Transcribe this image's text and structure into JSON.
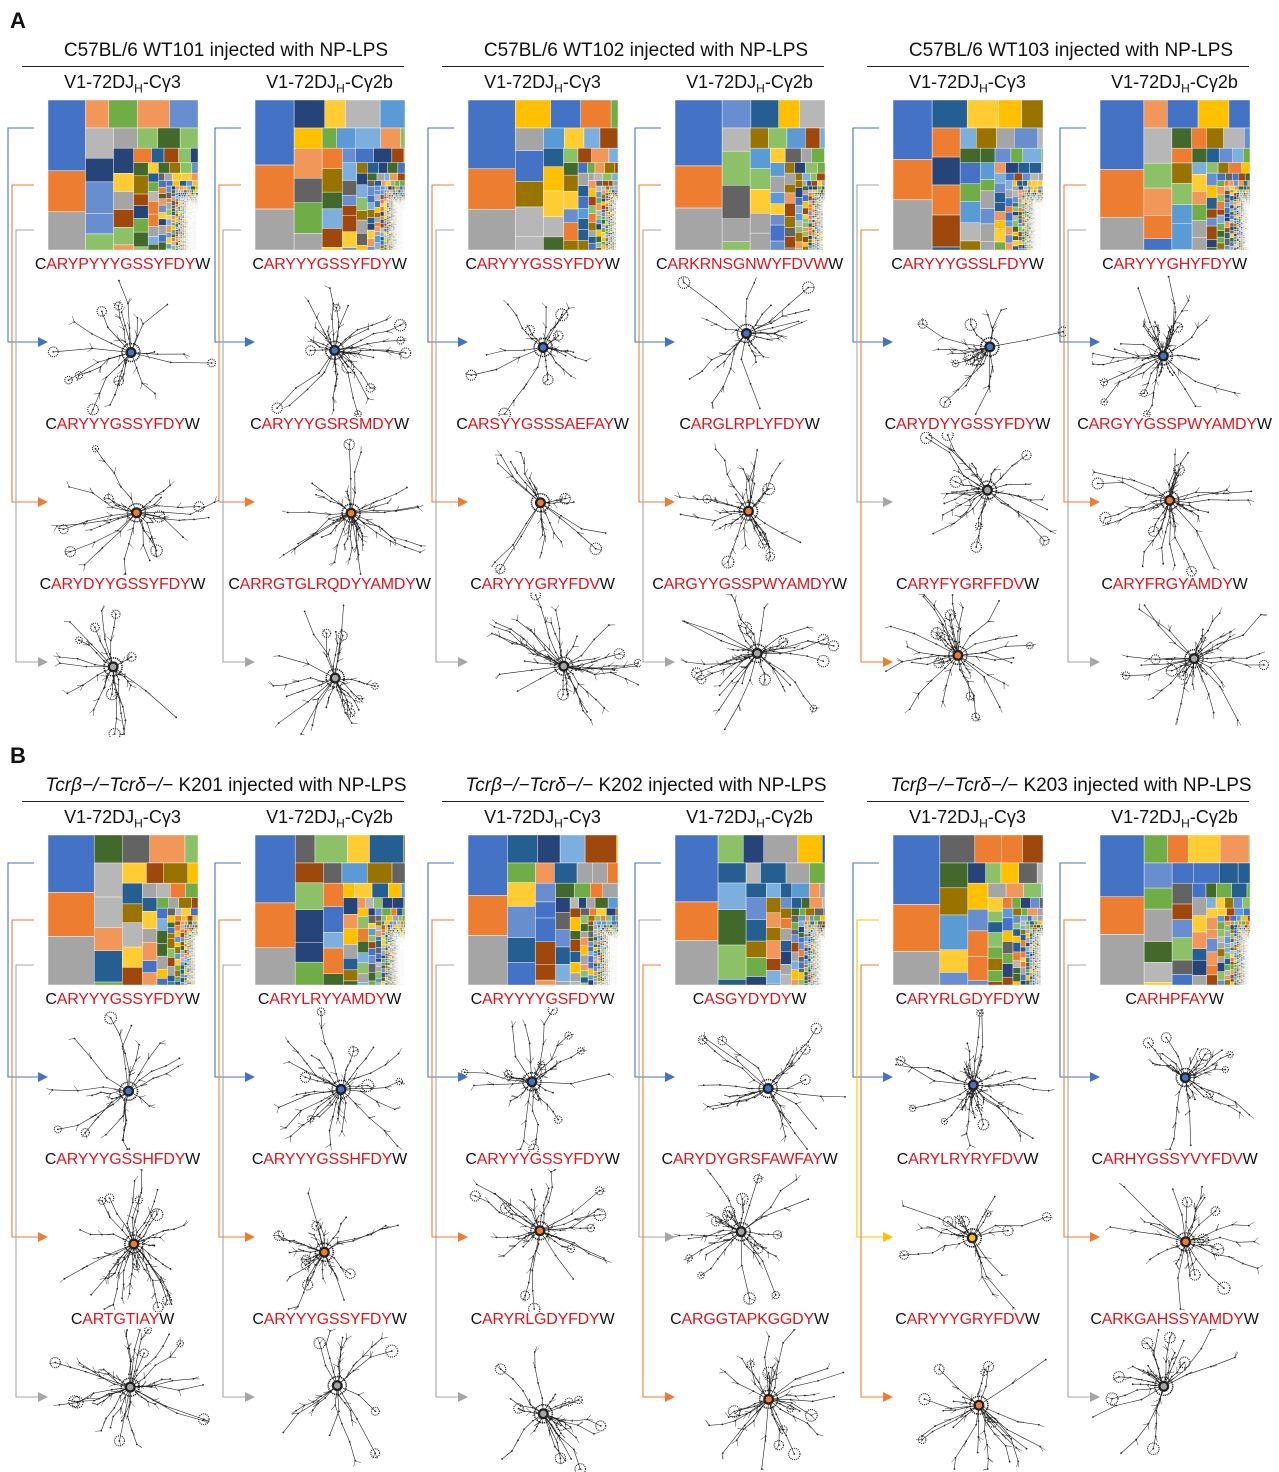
{
  "colors": {
    "blue": "#4472c4",
    "orange": "#ed7d31",
    "gray": "#a5a5a5",
    "yellow": "#ffc000",
    "seq_red": "#e0141b"
  },
  "palette": [
    "#4472c4",
    "#ed7d31",
    "#a5a5a5",
    "#ffc000",
    "#5b9bd5",
    "#70ad47",
    "#264478",
    "#9e480e",
    "#636363",
    "#997300",
    "#255e91",
    "#43682b",
    "#698ed0",
    "#f1975a",
    "#b7b7b7",
    "#ffcd33",
    "#8cc168",
    "#7cafdd"
  ],
  "panels": [
    {
      "letter": "A",
      "groups": [
        {
          "title_prefix": "C57BL/6",
          "title_suffix": "WT101 injected with NP-LPS",
          "columns": [
            {
              "heading": "V1-72DJH-Cγ3",
              "sequences": [
                {
                  "pre": "C",
                  "core": "ARYPYYYGSSYFDY",
                  "post": "W"
                },
                {
                  "pre": "C",
                  "core": "ARYYYGSSYFDY",
                  "post": "W"
                },
                {
                  "pre": "C",
                  "core": "ARYDYYGSSYFDY",
                  "post": "W"
                }
              ],
              "arrow_colors": [
                "blue",
                "orange",
                "gray"
              ]
            },
            {
              "heading": "V1-72DJH-Cγ2b",
              "sequences": [
                {
                  "pre": "C",
                  "core": "ARYYYGSSYFDY",
                  "post": "W"
                },
                {
                  "pre": "C",
                  "core": "ARYYYGSRSMDY",
                  "post": "W"
                },
                {
                  "pre": "C",
                  "core": "ARRGTGLRQDYYAMDY",
                  "post": "W"
                }
              ],
              "arrow_colors": [
                "blue",
                "orange",
                "gray"
              ]
            }
          ]
        },
        {
          "title_prefix": "C57BL/6",
          "title_suffix": "WT102 injected with NP-LPS",
          "columns": [
            {
              "heading": "V1-72DJH-Cγ3",
              "sequences": [
                {
                  "pre": "C",
                  "core": "ARYYYGSSYFDY",
                  "post": "W"
                },
                {
                  "pre": "C",
                  "core": "ARSYYGSSSAEFAY",
                  "post": "W"
                },
                {
                  "pre": "C",
                  "core": "ARYYYGRYFDV",
                  "post": "W"
                }
              ],
              "arrow_colors": [
                "blue",
                "orange",
                "gray"
              ]
            },
            {
              "heading": "V1-72DJH-Cγ2b",
              "sequences": [
                {
                  "pre": "C",
                  "core": "ARKRNSGNWYFDVW",
                  "post": "W"
                },
                {
                  "pre": "C",
                  "core": "ARGLRPLYFDY",
                  "post": "W"
                },
                {
                  "pre": "C",
                  "core": "ARGYYGSSPWYAMDY",
                  "post": "W"
                }
              ],
              "arrow_colors": [
                "blue",
                "orange",
                "gray"
              ]
            }
          ]
        },
        {
          "title_prefix": "C57BL/6",
          "title_suffix": "WT103 injected with NP-LPS",
          "columns": [
            {
              "heading": "V1-72DJH-Cγ3",
              "sequences": [
                {
                  "pre": "C",
                  "core": "ARYYYGSSLFDY",
                  "post": "W"
                },
                {
                  "pre": "C",
                  "core": "ARYDYYGSSYFDY",
                  "post": "W"
                },
                {
                  "pre": "C",
                  "core": "ARYFYGRFFDV",
                  "post": "W"
                }
              ],
              "arrow_colors": [
                "blue",
                "gray",
                "orange"
              ]
            },
            {
              "heading": "V1-72DJH-Cγ2b",
              "sequences": [
                {
                  "pre": "C",
                  "core": "ARYYYGHYFDY",
                  "post": "W"
                },
                {
                  "pre": "C",
                  "core": "ARGYYGSSPWYAMDY",
                  "post": "W"
                },
                {
                  "pre": "C",
                  "core": "ARYFRGYAMDY",
                  "post": "W"
                }
              ],
              "arrow_colors": [
                "blue",
                "orange",
                "gray"
              ]
            }
          ]
        }
      ]
    },
    {
      "letter": "B",
      "groups": [
        {
          "title_prefix": "Tcrβ−/−Tcrδ−/−",
          "title_suffix": "K201 injected with NP-LPS",
          "columns": [
            {
              "heading": "V1-72DJH-Cγ3",
              "sequences": [
                {
                  "pre": "C",
                  "core": "ARYYYGSSYFDY",
                  "post": "W"
                },
                {
                  "pre": "C",
                  "core": "ARYYYGSSHFDY",
                  "post": "W"
                },
                {
                  "pre": "C",
                  "core": "ARTGTIAY",
                  "post": "W"
                }
              ],
              "arrow_colors": [
                "blue",
                "orange",
                "gray"
              ]
            },
            {
              "heading": "V1-72DJH-Cγ2b",
              "sequences": [
                {
                  "pre": "C",
                  "core": "ARYLRYYAMDY",
                  "post": "W"
                },
                {
                  "pre": "C",
                  "core": "ARYYYGSSHFDY",
                  "post": "W"
                },
                {
                  "pre": "C",
                  "core": "ARYYYGSSYFDY",
                  "post": "W"
                }
              ],
              "arrow_colors": [
                "blue",
                "orange",
                "gray"
              ]
            }
          ]
        },
        {
          "title_prefix": "Tcrβ−/−Tcrδ−/−",
          "title_suffix": "K202 injected with NP-LPS",
          "columns": [
            {
              "heading": "V1-72DJH-Cγ3",
              "sequences": [
                {
                  "pre": "C",
                  "core": "ARYYYYGSFDY",
                  "post": "W"
                },
                {
                  "pre": "C",
                  "core": "ARYYYGSSYFDY",
                  "post": "W"
                },
                {
                  "pre": "C",
                  "core": "ARYRLGDYFDY",
                  "post": "W"
                }
              ],
              "arrow_colors": [
                "blue",
                "orange",
                "gray"
              ]
            },
            {
              "heading": "V1-72DJH-Cγ2b",
              "sequences": [
                {
                  "pre": "C",
                  "core": "ASGYDYDY",
                  "post": "W"
                },
                {
                  "pre": "C",
                  "core": "ARYDYGRSFAWFAY",
                  "post": "W"
                },
                {
                  "pre": "C",
                  "core": "ARGGTAPKGGDY",
                  "post": "W"
                }
              ],
              "arrow_colors": [
                "blue",
                "gray",
                "orange"
              ]
            }
          ]
        },
        {
          "title_prefix": "Tcrβ−/−Tcrδ−/−",
          "title_suffix": "K203 injected with NP-LPS",
          "columns": [
            {
              "heading": "V1-72DJH-Cγ3",
              "sequences": [
                {
                  "pre": "C",
                  "core": "ARYRLGDYFDY",
                  "post": "W"
                },
                {
                  "pre": "C",
                  "core": "ARYLRYRYFDV",
                  "post": "W"
                },
                {
                  "pre": "C",
                  "core": "ARYYYGRYFDV",
                  "post": "W"
                }
              ],
              "arrow_colors": [
                "blue",
                "yellow",
                "orange"
              ]
            },
            {
              "heading": "V1-72DJH-Cγ2b",
              "sequences": [
                {
                  "pre": "C",
                  "core": "ARHPFAY",
                  "post": "W"
                },
                {
                  "pre": "C",
                  "core": "ARHYGSSYVYFDV",
                  "post": "W"
                },
                {
                  "pre": "C",
                  "core": "ARKGAHSSYAMDY",
                  "post": "W"
                }
              ],
              "arrow_colors": [
                "blue",
                "orange",
                "gray"
              ]
            }
          ]
        }
      ]
    }
  ]
}
